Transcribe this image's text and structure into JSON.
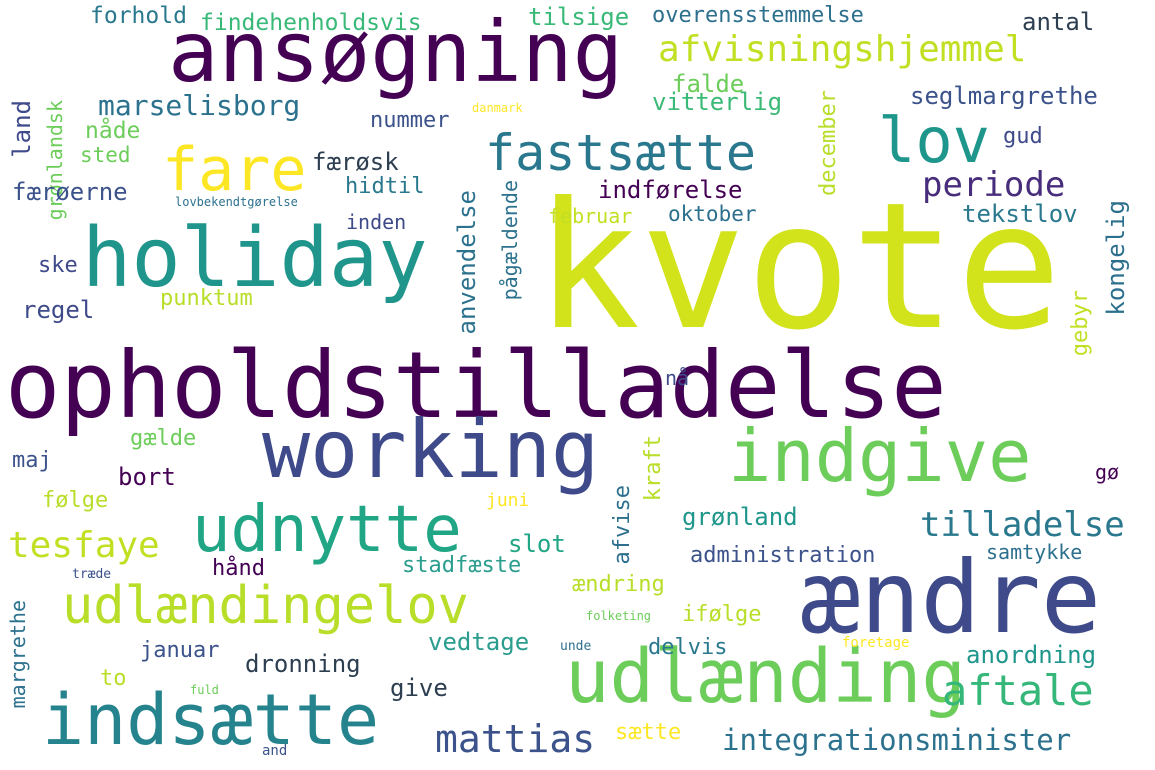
{
  "words": [
    {
      "text": "kvote",
      "color": "#d2e21b"
    },
    {
      "text": "opholdstilladelse",
      "color": "#440154"
    },
    {
      "text": "ansøgning",
      "color": "#440154"
    },
    {
      "text": "holiday",
      "color": "#1f958b"
    },
    {
      "text": "working",
      "color": "#3e4a89"
    },
    {
      "text": "ændre",
      "color": "#3e4a89"
    },
    {
      "text": "indgive",
      "color": "#6ccd5a"
    },
    {
      "text": "udlænding",
      "color": "#6ccd5a"
    },
    {
      "text": "indsætte",
      "color": "#25838e"
    },
    {
      "text": "udlændingelov",
      "color": "#b8de29"
    },
    {
      "text": "udnytte",
      "color": "#21a685"
    },
    {
      "text": "fastsætte",
      "color": "#2a788e"
    },
    {
      "text": "lov",
      "color": "#1f968b"
    },
    {
      "text": "fare",
      "color": "#fde725"
    },
    {
      "text": "afvisningshjemmel",
      "color": "#c2df23"
    },
    {
      "text": "periode",
      "color": "#472d7b"
    },
    {
      "text": "aftale",
      "color": "#35b779"
    },
    {
      "text": "tilladelse",
      "color": "#2a788e"
    },
    {
      "text": "tesfaye",
      "color": "#c2df23"
    },
    {
      "text": "mattias",
      "color": "#3b528b"
    },
    {
      "text": "integrationsminister",
      "color": "#2c728e"
    },
    {
      "text": "marselisborg",
      "color": "#2c728e"
    },
    {
      "text": "findehenholdsvis",
      "color": "#38b977"
    },
    {
      "text": "overensstemmelse",
      "color": "#2d708e"
    },
    {
      "text": "forhold",
      "color": "#2a788e"
    },
    {
      "text": "tilsige",
      "color": "#38b977"
    },
    {
      "text": "antal",
      "color": "#2c3e50"
    },
    {
      "text": "seglmargrethe",
      "color": "#3b528b"
    },
    {
      "text": "falde",
      "color": "#6ccd5a"
    },
    {
      "text": "vitterlig",
      "color": "#3aba76"
    },
    {
      "text": "nummer",
      "color": "#3b528b"
    },
    {
      "text": "danmark",
      "color": "#fde725"
    },
    {
      "text": "december",
      "color": "#b8de29"
    },
    {
      "text": "gud",
      "color": "#3e4a89"
    },
    {
      "text": "land",
      "color": "#3e4a89"
    },
    {
      "text": "nåde",
      "color": "#6ccd5a"
    },
    {
      "text": "grønlandsk",
      "color": "#6ccd5a"
    },
    {
      "text": "sted",
      "color": "#6ccd5a"
    },
    {
      "text": "færøsk",
      "color": "#2c3e50"
    },
    {
      "text": "indførelse",
      "color": "#440154"
    },
    {
      "text": "hidtil",
      "color": "#2a788e"
    },
    {
      "text": "færøerne",
      "color": "#3b528b"
    },
    {
      "text": "lovbekendtgørelse",
      "color": "#2c728e"
    },
    {
      "text": "februar",
      "color": "#c2df23"
    },
    {
      "text": "oktober",
      "color": "#2d708e"
    },
    {
      "text": "tekstlov",
      "color": "#2a788e"
    },
    {
      "text": "kongelig",
      "color": "#2d708e"
    },
    {
      "text": "inden",
      "color": "#3e4a89"
    },
    {
      "text": "anvendelse",
      "color": "#2c728e"
    },
    {
      "text": "pågældende",
      "color": "#2c728e"
    },
    {
      "text": "ske",
      "color": "#3e4a89"
    },
    {
      "text": "punktum",
      "color": "#b8de29"
    },
    {
      "text": "regel",
      "color": "#3e4a89"
    },
    {
      "text": "gebyr",
      "color": "#c2df23"
    },
    {
      "text": "nå",
      "color": "#3e4a89"
    },
    {
      "text": "gælde",
      "color": "#6ccd5a"
    },
    {
      "text": "maj",
      "color": "#3b528b"
    },
    {
      "text": "kraft",
      "color": "#b8de29"
    },
    {
      "text": "gø",
      "color": "#440154"
    },
    {
      "text": "bort",
      "color": "#440154"
    },
    {
      "text": "følge",
      "color": "#b8de29"
    },
    {
      "text": "juni",
      "color": "#fde725"
    },
    {
      "text": "afvise",
      "color": "#2d708e"
    },
    {
      "text": "grønland",
      "color": "#1f968b"
    },
    {
      "text": "slot",
      "color": "#21a685"
    },
    {
      "text": "administration",
      "color": "#3b528b"
    },
    {
      "text": "samtykke",
      "color": "#2d708e"
    },
    {
      "text": "hånd",
      "color": "#440154"
    },
    {
      "text": "stadfæste",
      "color": "#2a9d8f"
    },
    {
      "text": "ændring",
      "color": "#b8de29"
    },
    {
      "text": "træde",
      "color": "#3b528b"
    },
    {
      "text": "margrethe",
      "color": "#2c728e"
    },
    {
      "text": "ifølge",
      "color": "#b8de29"
    },
    {
      "text": "folketing",
      "color": "#6ccd5a"
    },
    {
      "text": "vedtage",
      "color": "#2a9d8f"
    },
    {
      "text": "januar",
      "color": "#3b528b"
    },
    {
      "text": "delvis",
      "color": "#2a788e"
    },
    {
      "text": "unde",
      "color": "#2d708e"
    },
    {
      "text": "foretage",
      "color": "#fde725"
    },
    {
      "text": "dronning",
      "color": "#2c3e50"
    },
    {
      "text": "anordning",
      "color": "#1f968b"
    },
    {
      "text": "to",
      "color": "#b8de29"
    },
    {
      "text": "give",
      "color": "#2c3e50"
    },
    {
      "text": "fuld",
      "color": "#6ccd5a"
    },
    {
      "text": "sætte",
      "color": "#fde725"
    },
    {
      "text": "and",
      "color": "#3b528b"
    }
  ]
}
